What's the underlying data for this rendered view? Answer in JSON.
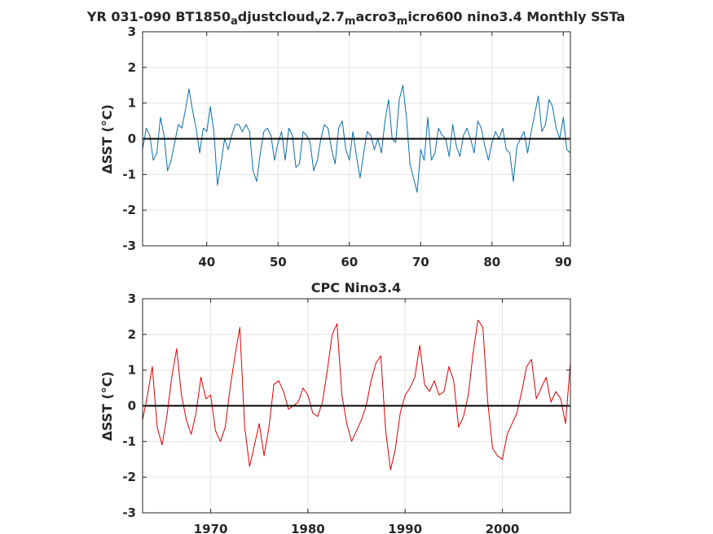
{
  "chart_data": [
    {
      "type": "line",
      "title_parts": [
        "YR 031-090 BT1850",
        "a",
        "djustcloud",
        "v",
        "2.7",
        "m",
        "acro3",
        "m",
        "icro600 nino3.4 Monthly SSTa"
      ],
      "ylabel": "ΔSST (°C)",
      "xlim": [
        31,
        91
      ],
      "ylim": [
        -3,
        3
      ],
      "xticks": [
        "40",
        "50",
        "60",
        "70",
        "80",
        "90"
      ],
      "yticks": [
        "3",
        "2",
        "1",
        "0",
        "-1",
        "-2",
        "-3"
      ],
      "grid": true,
      "line_color": "#0a6fa8",
      "zero_line": true,
      "series": [
        {
          "x": [
            31,
            31.5,
            32,
            32.5,
            33,
            33.5,
            34,
            34.5,
            35,
            35.5,
            36,
            36.5,
            37,
            37.5,
            38,
            38.5,
            39,
            39.5,
            40,
            40.5,
            41,
            41.5,
            42,
            42.5,
            43,
            43.5,
            44,
            44.5,
            45,
            45.5,
            46,
            46.5,
            47,
            47.5,
            48,
            48.5,
            49,
            49.5,
            50,
            50.5,
            51,
            51.5,
            52,
            52.5,
            53,
            53.5,
            54,
            54.5,
            55,
            55.5,
            56,
            56.5,
            57,
            57.5,
            58,
            58.5,
            59,
            59.5,
            60,
            60.5,
            61,
            61.5,
            62,
            62.5,
            63,
            63.5,
            64,
            64.5,
            65,
            65.5,
            66,
            66.5,
            67,
            67.5,
            68,
            68.5,
            69,
            69.5,
            70,
            70.5,
            71,
            71.5,
            72,
            72.5,
            73,
            73.5,
            74,
            74.5,
            75,
            75.5,
            76,
            76.5,
            77,
            77.5,
            78,
            78.5,
            79,
            79.5,
            80,
            80.5,
            81,
            81.5,
            82,
            82.5,
            83,
            83.5,
            84,
            84.5,
            85,
            85.5,
            86,
            86.5,
            87,
            87.5,
            88,
            88.5,
            89,
            89.5,
            90,
            90.5,
            91
          ],
          "y": [
            -0.3,
            0.3,
            0.1,
            -0.6,
            -0.4,
            0.6,
            0.1,
            -0.9,
            -0.6,
            -0.1,
            0.4,
            0.3,
            0.8,
            1.4,
            0.8,
            0.3,
            -0.4,
            0.3,
            0.2,
            0.9,
            0.2,
            -1.3,
            -0.7,
            0.0,
            -0.3,
            0.1,
            0.4,
            0.4,
            0.2,
            0.4,
            0.2,
            -0.9,
            -1.2,
            -0.4,
            0.2,
            0.3,
            0.1,
            -0.6,
            -0.1,
            0.2,
            -0.6,
            0.3,
            0.1,
            -0.8,
            -0.7,
            0.2,
            0.1,
            -0.1,
            -0.9,
            -0.6,
            0.0,
            0.4,
            0.3,
            -0.3,
            -0.7,
            0.3,
            0.5,
            -0.3,
            -0.6,
            0.2,
            -0.5,
            -1.1,
            -0.4,
            0.2,
            0.1,
            -0.3,
            0.0,
            -0.4,
            0.5,
            1.1,
            0.0,
            -0.1,
            1.1,
            1.5,
            0.6,
            -0.7,
            -1.1,
            -1.5,
            -0.3,
            -0.6,
            0.6,
            -0.6,
            -0.4,
            0.3,
            0.1,
            0.0,
            -0.5,
            0.4,
            -0.2,
            -0.5,
            0.1,
            0.3,
            0.0,
            -0.4,
            0.5,
            0.3,
            -0.2,
            -0.6,
            -0.1,
            0.2,
            0.0,
            0.3,
            -0.3,
            -0.4,
            -1.2,
            -0.2,
            0.0,
            0.2,
            -0.4,
            0.2,
            0.7,
            1.2,
            0.2,
            0.4,
            1.1,
            0.9,
            0.3,
            0.0,
            0.6,
            -0.3,
            -0.4
          ]
        }
      ]
    },
    {
      "type": "line",
      "title": "CPC Nino3.4",
      "ylabel": "ΔSST (°C)",
      "xlim": [
        1963,
        2007
      ],
      "ylim": [
        -3,
        3
      ],
      "xticks": [
        "1970",
        "1980",
        "1990",
        "2000"
      ],
      "yticks": [
        "3",
        "2",
        "1",
        "0",
        "-1",
        "-2",
        "-3"
      ],
      "grid": true,
      "line_color": "#d80000",
      "zero_line": true,
      "series": [
        {
          "x": [
            1963,
            1963.5,
            1964,
            1964.5,
            1965,
            1965.5,
            1966,
            1966.5,
            1967,
            1967.5,
            1968,
            1968.5,
            1969,
            1969.5,
            1970,
            1970.5,
            1971,
            1971.5,
            1972,
            1972.5,
            1973,
            1973.5,
            1974,
            1974.5,
            1975,
            1975.5,
            1976,
            1976.5,
            1977,
            1977.5,
            1978,
            1978.5,
            1979,
            1979.5,
            1980,
            1980.5,
            1981,
            1981.5,
            1982,
            1982.5,
            1983,
            1983.5,
            1984,
            1984.5,
            1985,
            1985.5,
            1986,
            1986.5,
            1987,
            1987.5,
            1988,
            1988.5,
            1989,
            1989.5,
            1990,
            1990.5,
            1991,
            1991.5,
            1992,
            1992.5,
            1993,
            1993.5,
            1994,
            1994.5,
            1995,
            1995.5,
            1996,
            1996.5,
            1997,
            1997.5,
            1998,
            1998.5,
            1999,
            1999.5,
            2000,
            2000.5,
            2001,
            2001.5,
            2002,
            2002.5,
            2003,
            2003.5,
            2004,
            2004.5,
            2005,
            2005.5,
            2006,
            2006.5,
            2007
          ],
          "y": [
            -0.4,
            0.3,
            1.1,
            -0.6,
            -1.1,
            -0.3,
            0.8,
            1.6,
            0.3,
            -0.4,
            -0.8,
            -0.2,
            0.8,
            0.2,
            0.3,
            -0.7,
            -1.0,
            -0.6,
            0.5,
            1.4,
            2.2,
            -0.6,
            -1.7,
            -1.1,
            -0.5,
            -1.4,
            -0.6,
            0.6,
            0.7,
            0.4,
            -0.1,
            0.0,
            0.1,
            0.5,
            0.3,
            -0.2,
            -0.3,
            0.1,
            1.0,
            2.0,
            2.3,
            0.3,
            -0.5,
            -1.0,
            -0.7,
            -0.4,
            0.0,
            0.7,
            1.2,
            1.4,
            -0.7,
            -1.8,
            -1.2,
            -0.2,
            0.3,
            0.5,
            0.8,
            1.7,
            0.6,
            0.4,
            0.7,
            0.3,
            0.4,
            1.1,
            0.7,
            -0.6,
            -0.3,
            0.3,
            1.5,
            2.4,
            2.2,
            0.1,
            -1.2,
            -1.4,
            -1.5,
            -0.8,
            -0.5,
            -0.2,
            0.4,
            1.1,
            1.3,
            0.2,
            0.5,
            0.8,
            0.1,
            0.4,
            0.2,
            -0.5,
            1.2
          ]
        }
      ]
    }
  ]
}
